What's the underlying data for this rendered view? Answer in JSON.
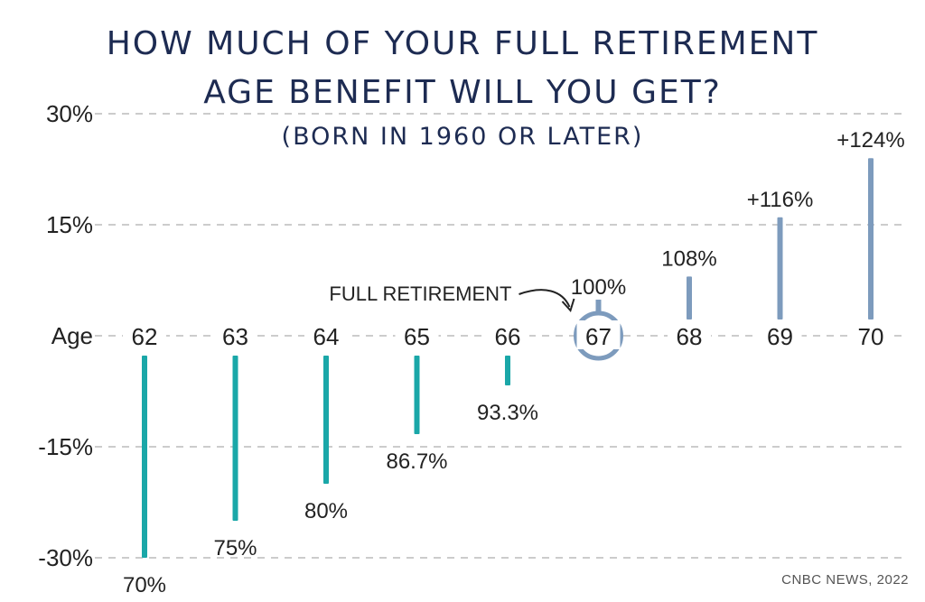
{
  "header": {
    "title_line1": "HOW MUCH OF YOUR FULL RETIREMENT",
    "title_line2": "AGE BENEFIT WILL YOU GET?",
    "subtitle": "(BORN IN 1960 OR LATER)"
  },
  "source": "CNBC NEWS, 2022",
  "chart_data": {
    "type": "bar",
    "title": "HOW MUCH OF YOUR FULL RETIREMENT AGE BENEFIT WILL YOU GET?",
    "subtitle": "(BORN IN 1960 OR LATER)",
    "xlabel": "Age",
    "ylabel": "",
    "ylim": [
      -30,
      30
    ],
    "yticks": [
      "30%",
      "15%",
      "-15%",
      "-30%"
    ],
    "ytick_values": [
      30,
      15,
      -15,
      -30
    ],
    "grid": true,
    "baseline_at": 0,
    "categories": [
      "62",
      "63",
      "64",
      "65",
      "66",
      "67",
      "68",
      "69",
      "70"
    ],
    "values": [
      -30,
      -25,
      -20,
      -13.3,
      -6.7,
      0,
      8,
      16,
      24
    ],
    "labels": [
      "70%",
      "75%",
      "80%",
      "86.7%",
      "93.3%",
      "100%",
      "108%",
      "+116%",
      "+124%"
    ],
    "highlight_category": "67",
    "annotation": "FULL RETIREMENT",
    "colors": {
      "reduced": "#1aa7a8",
      "increased": "#7d9bbd",
      "highlight_ring": "#7d9bbd",
      "grid": "#cccccc",
      "title": "#1d2b52"
    }
  }
}
